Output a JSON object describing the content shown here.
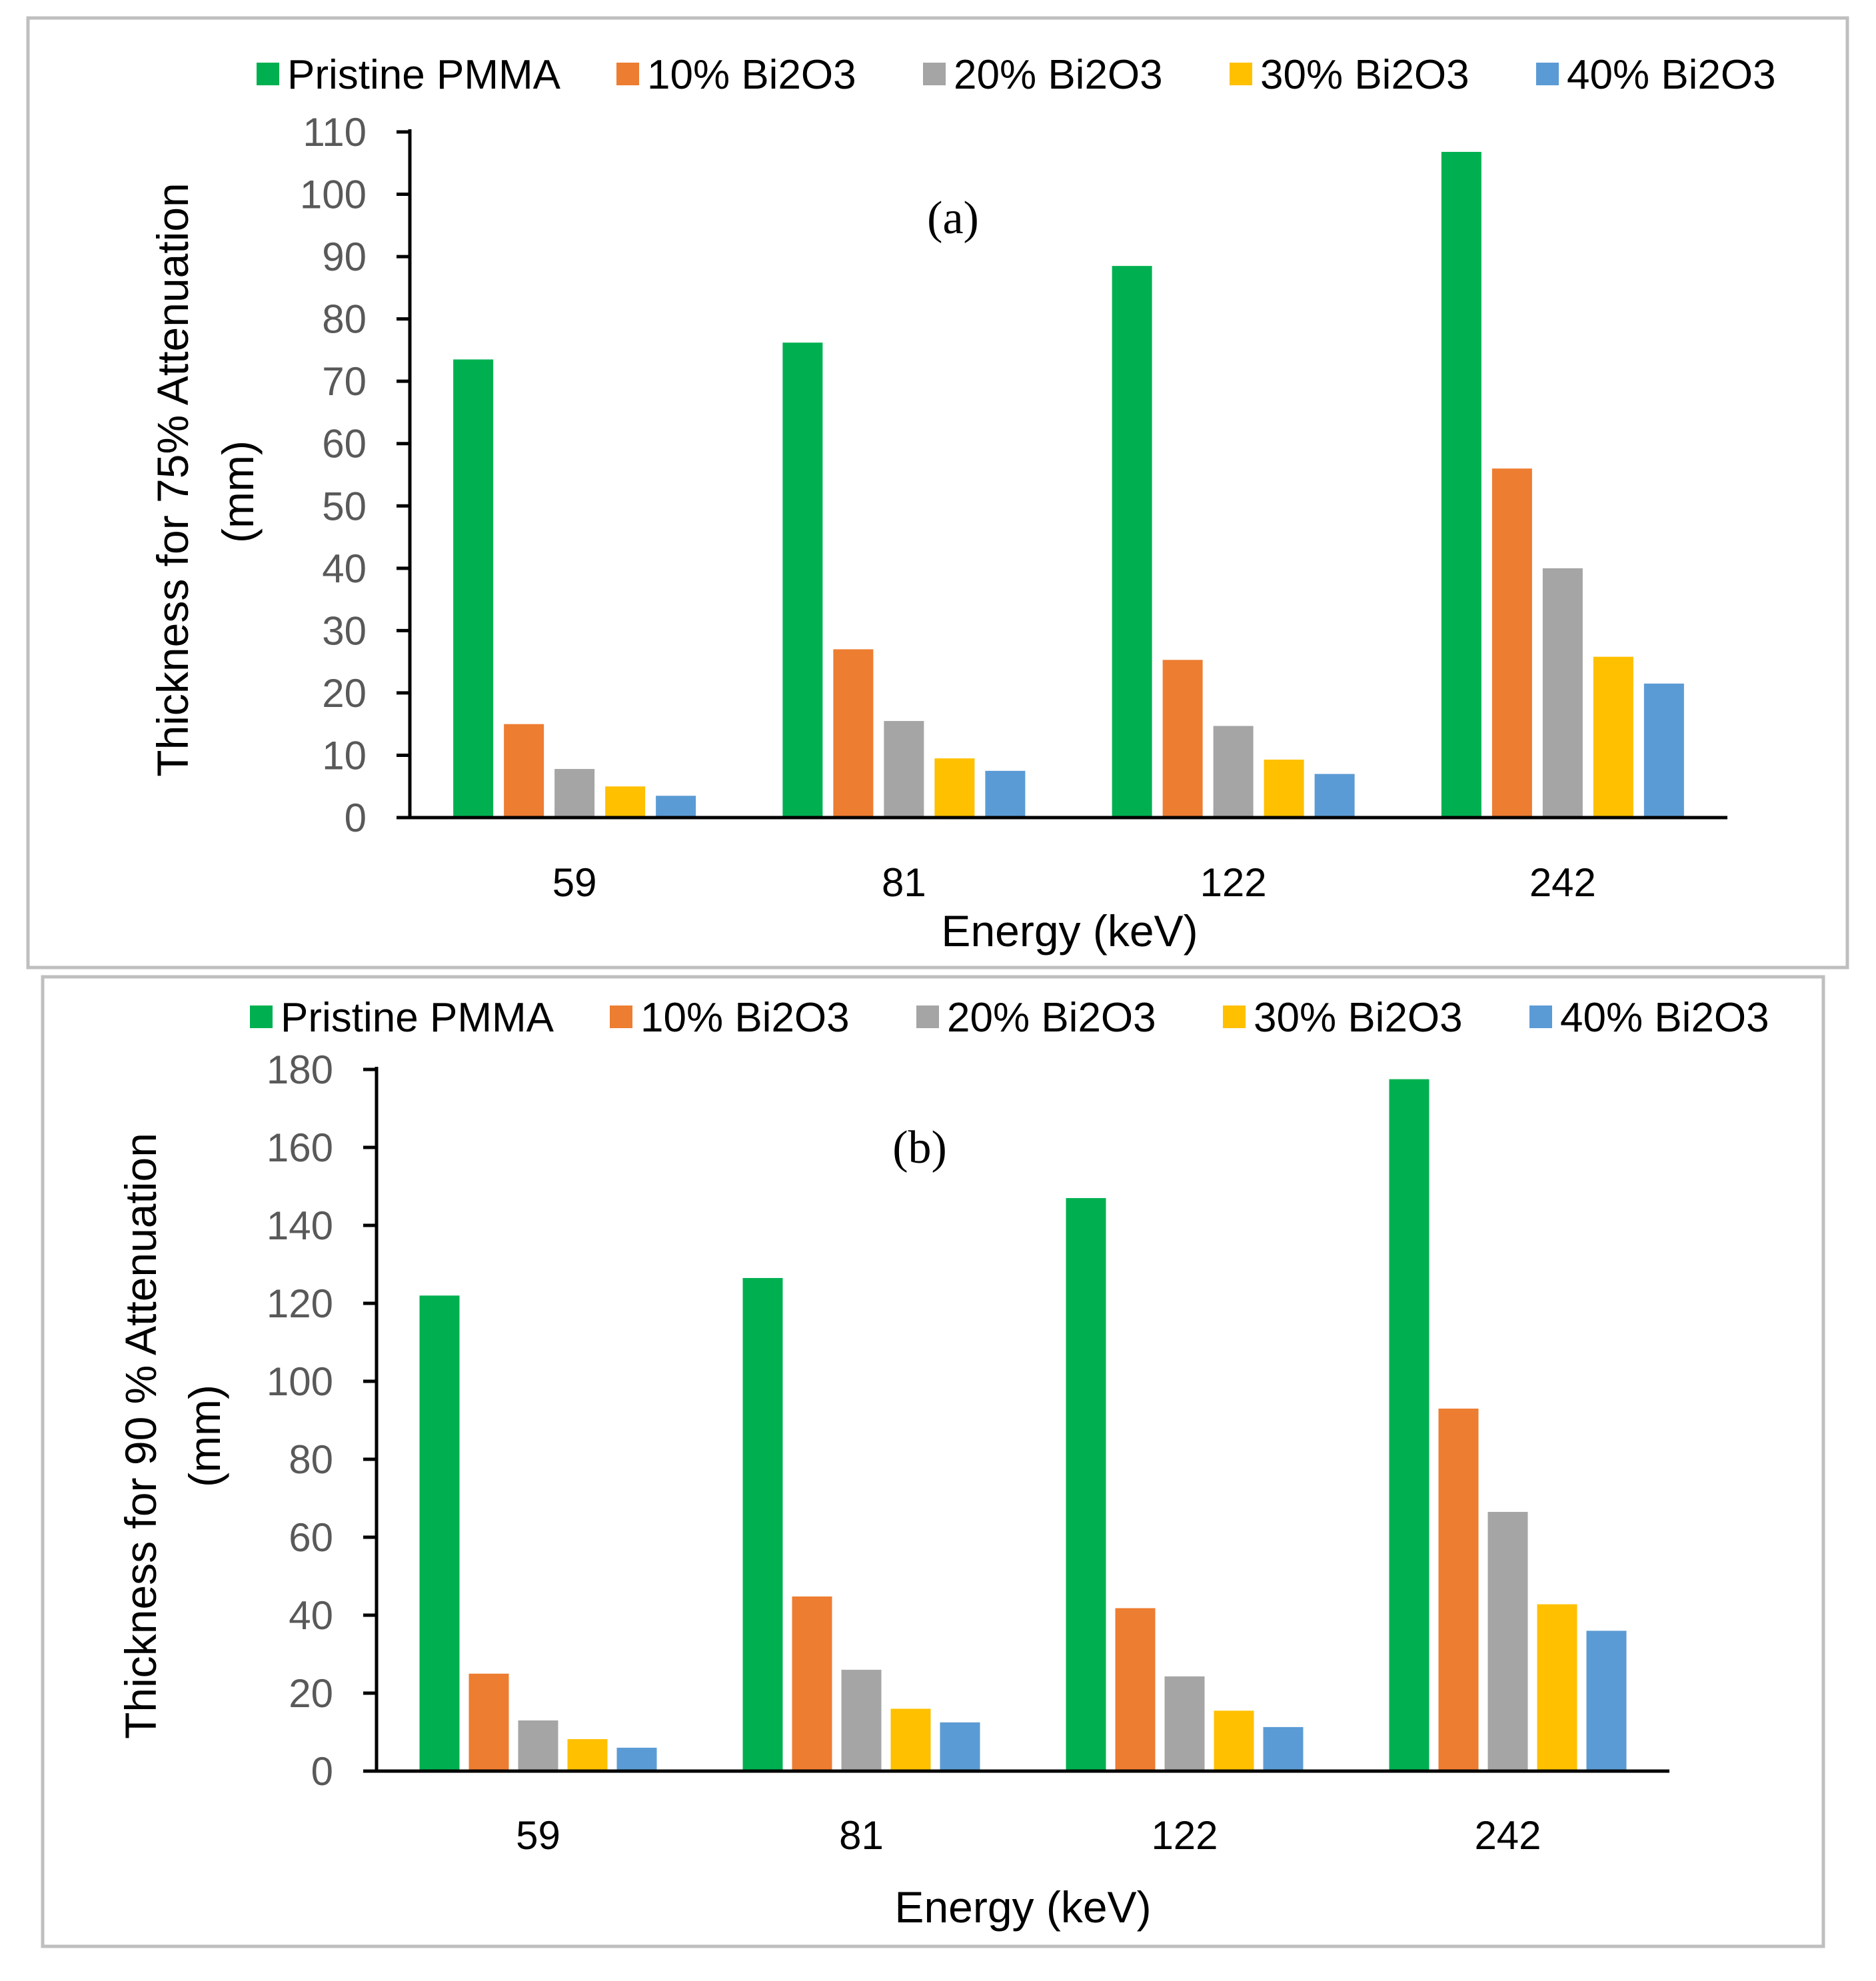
{
  "colors": {
    "background": "#ffffff",
    "frame": "#bfbfbf",
    "axis": "#000000",
    "tick_text": "#595959",
    "text": "#000000"
  },
  "chart_data": [
    {
      "type": "bar",
      "panel_label": "(a)",
      "title": "",
      "xlabel": "Energy (keV)",
      "ylabel_line1": "Thickness for 75% Attenuation",
      "ylabel_line2": "(mm)",
      "ylim": [
        0,
        110
      ],
      "yticks": [
        "0",
        "10",
        "20",
        "30",
        "40",
        "50",
        "60",
        "70",
        "80",
        "90",
        "100",
        "110"
      ],
      "categories": [
        "59",
        "81",
        "122",
        "242"
      ],
      "grid": false,
      "legend_position": "top",
      "series": [
        {
          "name": "Pristine PMMA",
          "color": "#00b050",
          "values": [
            73.5,
            76.2,
            88.5,
            106.8
          ]
        },
        {
          "name": "10% Bi2O3",
          "color": "#ed7d31",
          "values": [
            15,
            27,
            25.3,
            56
          ]
        },
        {
          "name": "20% Bi2O3",
          "color": "#a5a5a5",
          "values": [
            7.8,
            15.5,
            14.7,
            40
          ]
        },
        {
          "name": "30% Bi2O3",
          "color": "#ffc000",
          "values": [
            5,
            9.5,
            9.3,
            25.8
          ]
        },
        {
          "name": "40% Bi2O3",
          "color": "#5b9bd5",
          "values": [
            3.5,
            7.5,
            7,
            21.5
          ]
        }
      ]
    },
    {
      "type": "bar",
      "panel_label": "(b)",
      "title": "",
      "xlabel": "Energy (keV)",
      "ylabel_line1": "Thickness for 90 % Attenuation",
      "ylabel_line2": "(mm)",
      "ylim": [
        0,
        180
      ],
      "yticks": [
        "0",
        "20",
        "40",
        "60",
        "80",
        "100",
        "120",
        "140",
        "160",
        "180"
      ],
      "categories": [
        "59",
        "81",
        "122",
        "242"
      ],
      "grid": false,
      "legend_position": "top",
      "series": [
        {
          "name": "Pristine PMMA",
          "color": "#00b050",
          "values": [
            122,
            126.5,
            147,
            177.5
          ]
        },
        {
          "name": "10% Bi2O3",
          "color": "#ed7d31",
          "values": [
            25,
            44.8,
            41.8,
            93
          ]
        },
        {
          "name": "20% Bi2O3",
          "color": "#a5a5a5",
          "values": [
            13,
            26,
            24.3,
            66.5
          ]
        },
        {
          "name": "30% Bi2O3",
          "color": "#ffc000",
          "values": [
            8.2,
            16,
            15.5,
            42.8
          ]
        },
        {
          "name": "40% Bi2O3",
          "color": "#5b9bd5",
          "values": [
            6,
            12.5,
            11.3,
            36
          ]
        }
      ]
    }
  ]
}
